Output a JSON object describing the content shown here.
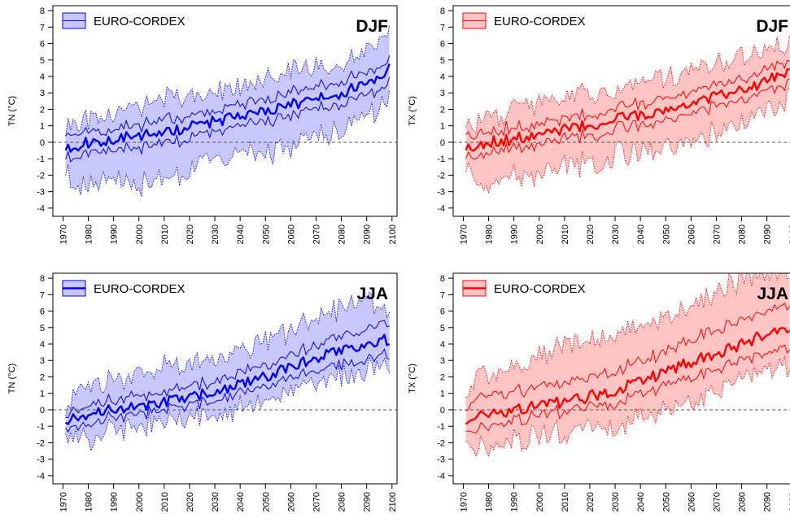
{
  "colors": {
    "blue": "#0000ee",
    "blue_fill": "#c8c8ff",
    "red": "#ff0000",
    "red_fill": "#ffc4c4",
    "zero_line": "#555555"
  },
  "x_ticks": [
    "1970",
    "1980",
    "1990",
    "2000",
    "2010",
    "2020",
    "2030",
    "2040",
    "2050",
    "2060",
    "2070",
    "2080",
    "2090",
    "2100"
  ],
  "y_ticks": [
    "-4",
    "-3",
    "-2",
    "-1",
    "0",
    "1",
    "2",
    "3",
    "4",
    "5",
    "6",
    "7",
    "8"
  ],
  "chart_data": [
    {
      "type": "line",
      "panel": "top-left",
      "ylabel": "TN (°C)",
      "season": "DJF",
      "legend": "EURO-CORDEX",
      "legend_placement": "top-left",
      "color": "blue",
      "xlim": [
        1966,
        2102
      ],
      "ylim": [
        -4.5,
        8.3
      ],
      "x_start": 1971,
      "x_end": 2099,
      "zero_line": true,
      "anchors": {
        "x": [
          1971,
          1975,
          1980,
          1990,
          2000,
          2010,
          2020,
          2030,
          2040,
          2050,
          2060,
          2070,
          2080,
          2090,
          2099
        ],
        "median": [
          -0.3,
          -0.3,
          0.0,
          0.2,
          0.4,
          0.6,
          0.9,
          1.3,
          1.5,
          1.9,
          2.3,
          2.6,
          3.0,
          3.6,
          4.5
        ],
        "q25": [
          -0.8,
          -0.9,
          -0.5,
          -0.4,
          -0.3,
          0.1,
          0.2,
          0.6,
          0.9,
          1.3,
          1.6,
          2.0,
          2.4,
          2.9,
          3.7
        ],
        "q75": [
          0.6,
          0.5,
          0.7,
          0.8,
          1.0,
          1.4,
          1.6,
          1.8,
          2.2,
          2.6,
          3.0,
          3.3,
          3.7,
          4.2,
          5.0
        ],
        "min": [
          -1.6,
          -2.8,
          -2.4,
          -2.2,
          -2.5,
          -1.9,
          -1.7,
          -1.1,
          -0.9,
          -0.6,
          -0.3,
          0.3,
          0.8,
          1.6,
          2.8
        ],
        "max": [
          1.0,
          1.4,
          1.4,
          2.0,
          2.2,
          2.6,
          2.8,
          3.0,
          3.4,
          3.8,
          4.3,
          4.6,
          5.0,
          5.5,
          6.4
        ]
      },
      "seed": 11
    },
    {
      "type": "line",
      "panel": "top-right",
      "ylabel": "TX (°C)",
      "season": "DJF",
      "legend": "EURO-CORDEX",
      "legend_placement": "top-left",
      "color": "red",
      "xlim": [
        1966,
        2102
      ],
      "ylim": [
        -4.5,
        8.3
      ],
      "x_start": 1971,
      "x_end": 2099,
      "zero_line": true,
      "anchors": {
        "x": [
          1971,
          1975,
          1980,
          1990,
          2000,
          2010,
          2020,
          2030,
          2040,
          2050,
          2060,
          2070,
          2080,
          2090,
          2099
        ],
        "median": [
          -0.3,
          -0.2,
          0.0,
          0.2,
          0.5,
          0.8,
          1.0,
          1.4,
          1.7,
          2.0,
          2.4,
          2.8,
          3.2,
          3.7,
          4.4
        ],
        "q25": [
          -0.8,
          -0.9,
          -0.5,
          -0.3,
          -0.2,
          0.2,
          0.4,
          0.8,
          1.1,
          1.4,
          1.8,
          2.2,
          2.6,
          3.1,
          3.7
        ],
        "q75": [
          0.6,
          0.5,
          0.7,
          0.9,
          1.1,
          1.5,
          1.7,
          2.0,
          2.4,
          2.7,
          3.1,
          3.5,
          3.9,
          4.3,
          5.0
        ],
        "min": [
          -1.5,
          -2.6,
          -2.4,
          -2.0,
          -2.2,
          -1.5,
          -1.3,
          -0.8,
          -0.5,
          -0.2,
          0.0,
          0.6,
          1.2,
          1.9,
          2.9
        ],
        "max": [
          1.0,
          1.3,
          1.5,
          2.0,
          2.4,
          2.8,
          3.0,
          3.3,
          3.6,
          4.0,
          4.4,
          4.8,
          5.2,
          5.6,
          6.2
        ]
      },
      "seed": 23
    },
    {
      "type": "line",
      "panel": "bottom-left",
      "ylabel": "TN (°C)",
      "season": "JJA",
      "legend": "EURO-CORDEX",
      "legend_placement": "top-left",
      "color": "blue",
      "xlim": [
        1966,
        2102
      ],
      "ylim": [
        -4.5,
        8.3
      ],
      "x_start": 1971,
      "x_end": 2099,
      "zero_line": true,
      "anchors": {
        "x": [
          1971,
          1975,
          1980,
          1990,
          2000,
          2010,
          2020,
          2030,
          2040,
          2050,
          2060,
          2070,
          2080,
          2090,
          2099
        ],
        "median": [
          -0.6,
          -0.4,
          -0.2,
          0.1,
          0.2,
          0.5,
          0.8,
          1.1,
          1.5,
          2.0,
          2.6,
          3.1,
          3.6,
          4.1,
          4.3
        ],
        "q25": [
          -1.0,
          -1.0,
          -0.8,
          -0.4,
          -0.2,
          0.0,
          0.3,
          0.6,
          1.0,
          1.4,
          1.9,
          2.3,
          2.7,
          3.2,
          3.5
        ],
        "q75": [
          -0.2,
          0.1,
          0.4,
          0.7,
          0.8,
          1.1,
          1.4,
          1.7,
          2.2,
          2.7,
          3.3,
          3.9,
          4.4,
          5.0,
          5.4
        ],
        "min": [
          -1.5,
          -1.6,
          -1.8,
          -1.2,
          -0.9,
          -0.7,
          -0.5,
          -0.3,
          0.1,
          0.5,
          1.0,
          1.5,
          2.0,
          2.6,
          3.0
        ],
        "max": [
          0.3,
          1.0,
          1.2,
          1.8,
          2.0,
          2.6,
          2.8,
          3.2,
          3.6,
          4.2,
          4.8,
          5.5,
          6.2,
          6.8,
          6.2
        ]
      },
      "seed": 37
    },
    {
      "type": "line",
      "panel": "bottom-right",
      "ylabel": "TX (°C)",
      "season": "JJA",
      "legend": "EURO-CORDEX",
      "legend_placement": "top-left",
      "color": "red",
      "xlim": [
        1966,
        2102
      ],
      "ylim": [
        -4.5,
        8.3
      ],
      "x_start": 1971,
      "x_end": 2099,
      "zero_line": true,
      "anchors": {
        "x": [
          1971,
          1975,
          1980,
          1990,
          2000,
          2010,
          2020,
          2030,
          2040,
          2050,
          2060,
          2070,
          2080,
          2090,
          2099
        ],
        "median": [
          -0.7,
          -0.5,
          -0.3,
          0.0,
          0.2,
          0.5,
          0.8,
          1.2,
          1.7,
          2.3,
          2.9,
          3.4,
          4.0,
          4.6,
          4.8
        ],
        "q25": [
          -1.3,
          -1.3,
          -1.0,
          -0.6,
          -0.4,
          -0.1,
          0.2,
          0.5,
          0.9,
          1.5,
          2.0,
          2.5,
          3.0,
          3.4,
          3.7
        ],
        "q75": [
          0.0,
          0.6,
          0.9,
          1.1,
          1.3,
          1.6,
          2.0,
          2.4,
          2.9,
          3.5,
          4.2,
          4.9,
          5.5,
          6.0,
          6.2
        ],
        "min": [
          -2.3,
          -2.3,
          -2.2,
          -1.8,
          -1.6,
          -1.4,
          -1.1,
          -0.9,
          -0.5,
          0.0,
          0.6,
          1.2,
          1.8,
          2.3,
          2.6
        ],
        "max": [
          0.8,
          1.8,
          2.2,
          2.8,
          3.2,
          3.8,
          4.2,
          4.6,
          5.0,
          5.6,
          6.4,
          7.2,
          7.8,
          8.5,
          8.3
        ]
      },
      "seed": 51
    }
  ]
}
